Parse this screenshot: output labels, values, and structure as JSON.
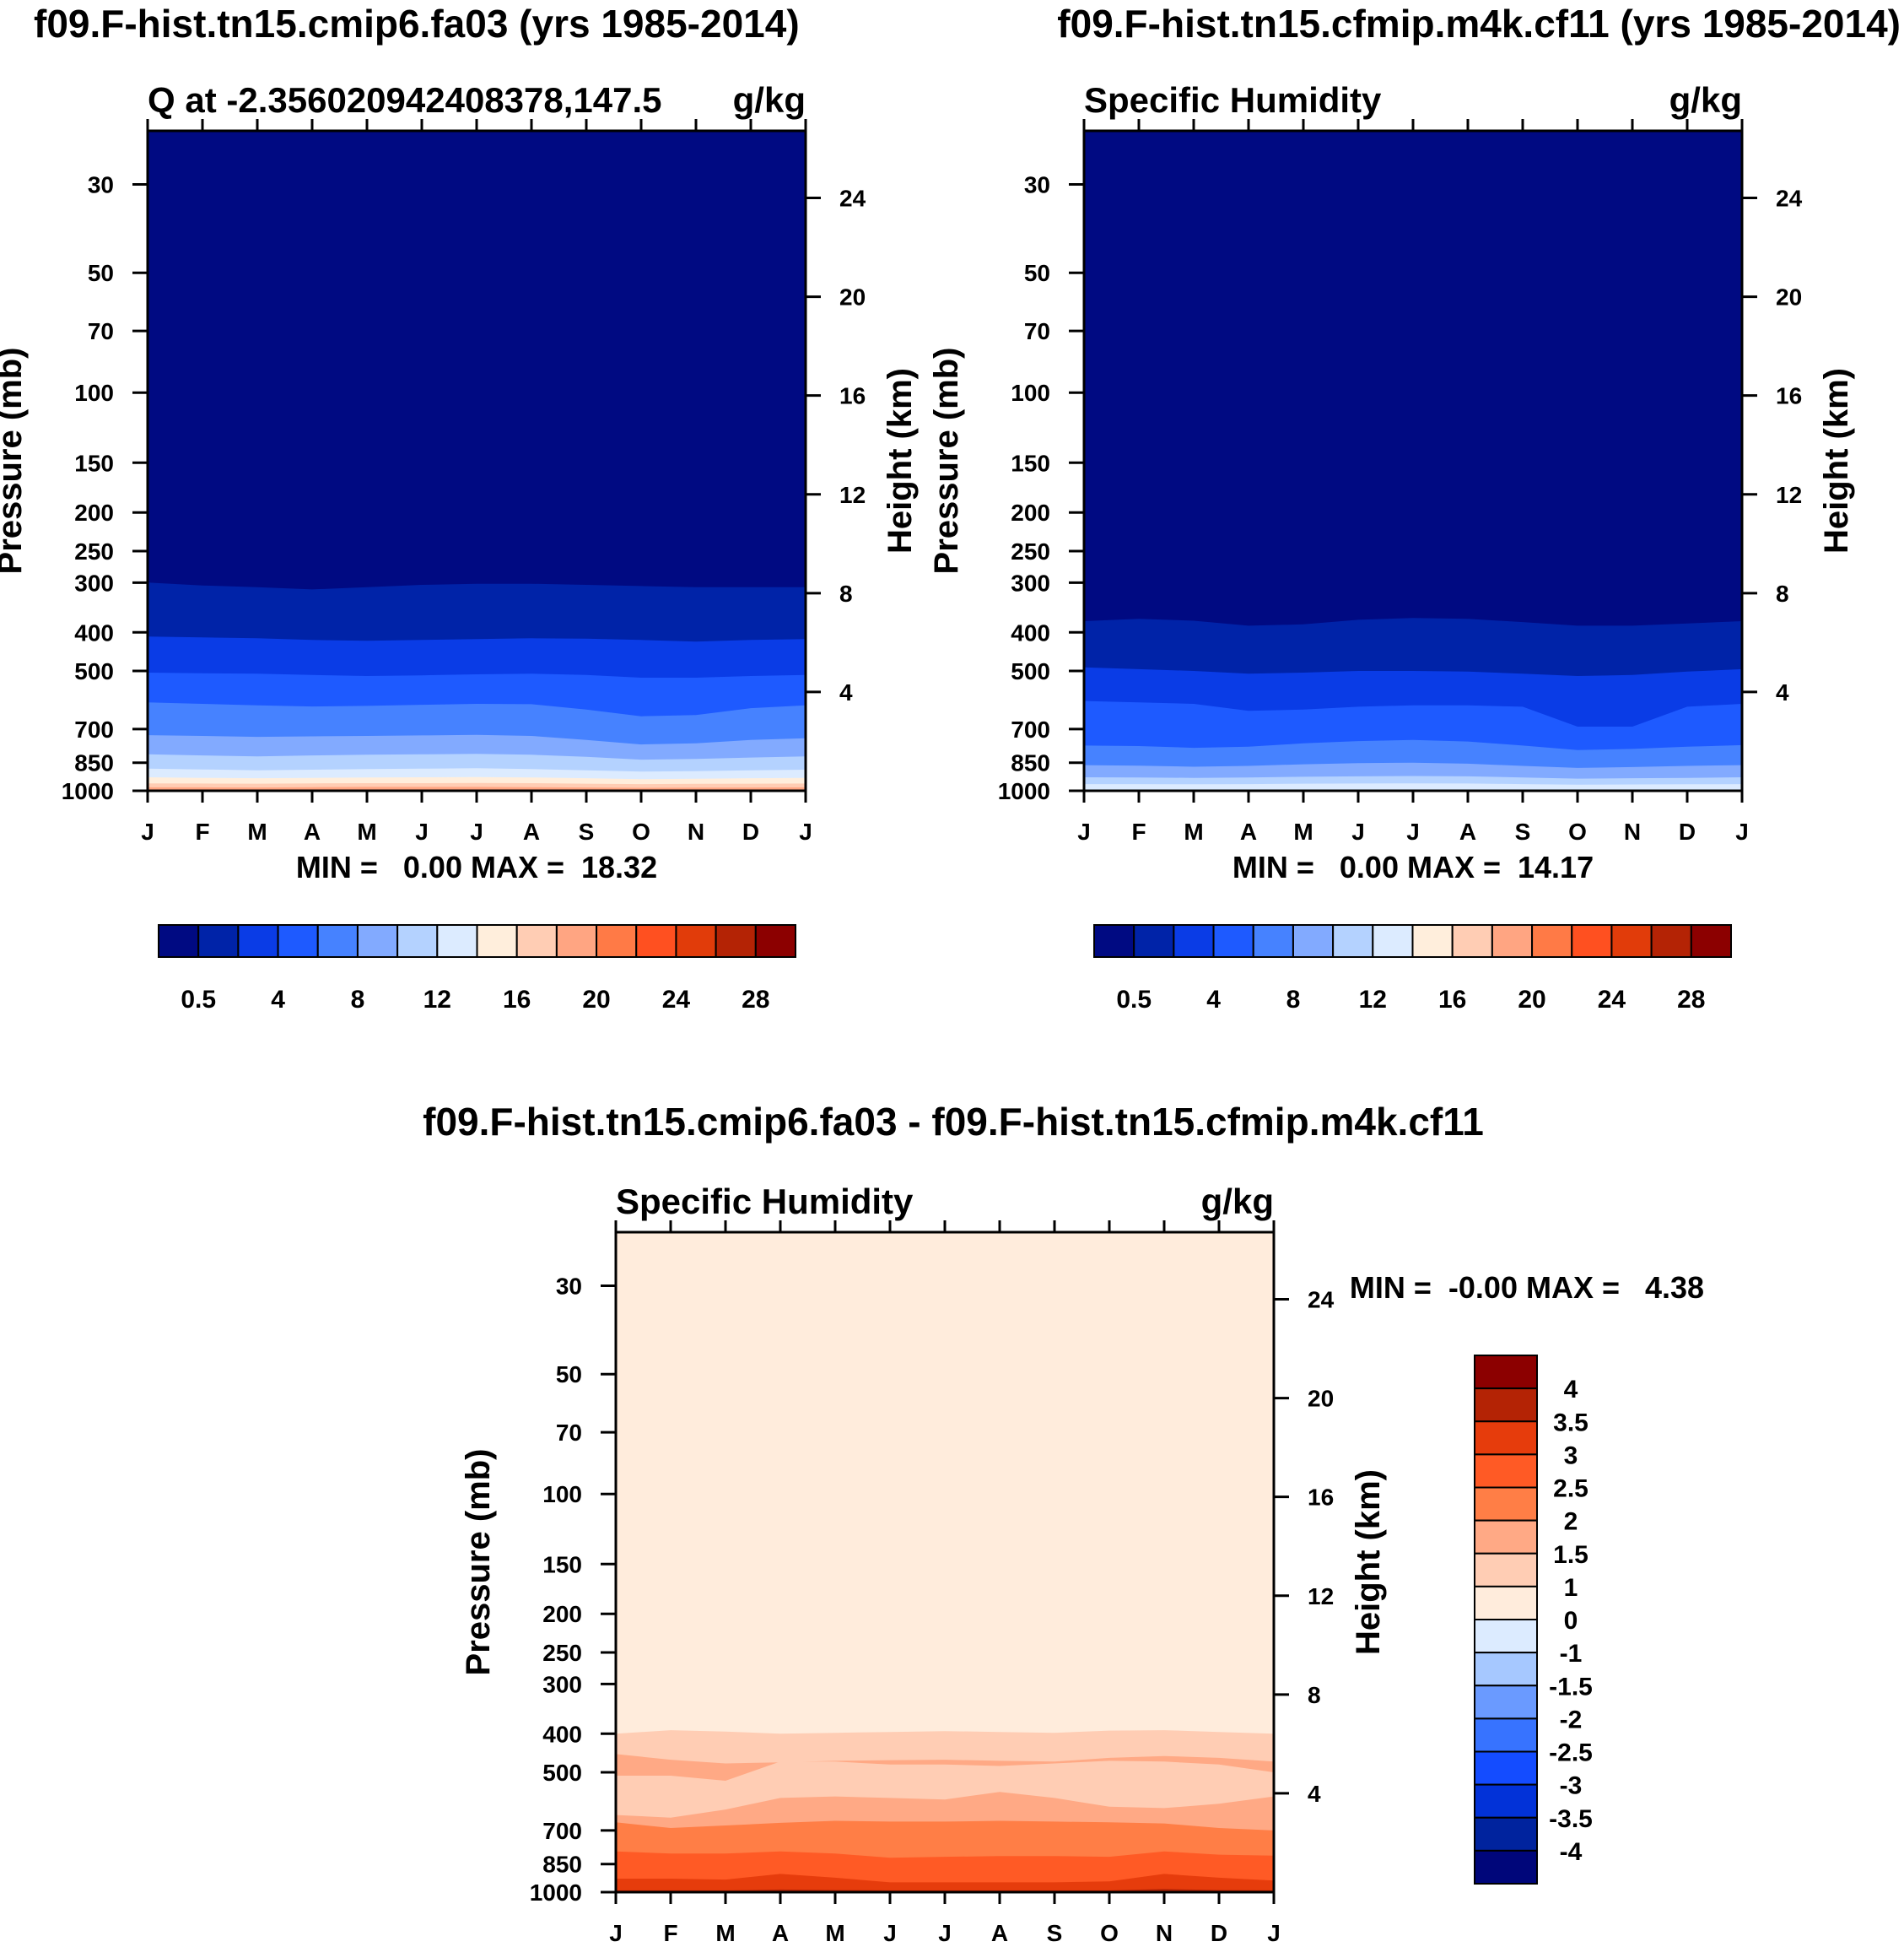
{
  "page_title_left": "f09.F-hist.tn15.cmip6.fa03 (yrs 1985-2014)",
  "page_title_right": "f09.F-hist.tn15.cfmip.m4k.cf11 (yrs 1985-2014)",
  "diff_title": "f09.F-hist.tn15.cmip6.fa03 - f09.F-hist.tn15.cfmip.m4k.cf11",
  "colors": {
    "abs_levels": [
      "#000a82",
      "#0023a8",
      "#0a3ce6",
      "#1e5aff",
      "#4682ff",
      "#82aaff",
      "#b4d2ff",
      "#dcebff",
      "#ffeedc",
      "#ffcdb4",
      "#ffa582",
      "#ff7a46",
      "#ff5020",
      "#e13c0a",
      "#b42305",
      "#8c0000"
    ],
    "diff_levels": [
      "#00067a",
      "#00239e",
      "#0232d8",
      "#144cff",
      "#3773ff",
      "#6a9aff",
      "#a6c8ff",
      "#dcebff",
      "#ffecdc",
      "#ffcdb4",
      "#ffa985",
      "#ff7e46",
      "#ff5a25",
      "#e63c0c",
      "#b42305",
      "#8c0000"
    ]
  },
  "chart_data": [
    {
      "type": "contour",
      "panel": "left",
      "title": "Q at -2.356020942408378,147.5",
      "units": "g/kg",
      "xlabel": "",
      "ylabel": "Pressure (mb)",
      "y2label": "Height (km)",
      "x_ticks": [
        "J",
        "F",
        "M",
        "A",
        "M",
        "J",
        "J",
        "A",
        "S",
        "O",
        "N",
        "D",
        "J"
      ],
      "y_ticks": [
        30,
        50,
        70,
        100,
        150,
        200,
        250,
        300,
        400,
        500,
        700,
        850,
        1000
      ],
      "y2_ticks": [
        4,
        8,
        12,
        16,
        20,
        24
      ],
      "ylim": [
        22,
        1000
      ],
      "stats": "MIN =   0.00 MAX =  18.32",
      "min": 0.0,
      "max": 18.32,
      "contour_pressures_mb": [
        [
          300,
          305,
          308,
          312,
          308,
          304,
          302,
          302,
          304,
          306,
          308,
          308,
          308
        ],
        [
          410,
          412,
          414,
          418,
          420,
          418,
          416,
          414,
          415,
          418,
          422,
          418,
          416
        ],
        [
          505,
          507,
          508,
          512,
          515,
          513,
          510,
          508,
          512,
          520,
          520,
          515,
          512
        ],
        [
          600,
          605,
          610,
          614,
          612,
          608,
          605,
          606,
          625,
          650,
          645,
          620,
          610
        ],
        [
          725,
          728,
          732,
          730,
          728,
          726,
          724,
          728,
          745,
          765,
          760,
          745,
          738
        ],
        [
          810,
          815,
          820,
          815,
          812,
          810,
          808,
          812,
          822,
          835,
          832,
          825,
          820
        ],
        [
          880,
          884,
          888,
          885,
          882,
          880,
          878,
          882,
          888,
          895,
          893,
          888,
          885
        ],
        [
          925,
          928,
          930,
          928,
          926,
          925,
          924,
          926,
          930,
          935,
          933,
          930,
          928
        ],
        [
          958,
          959,
          960,
          958,
          957,
          957,
          956,
          957,
          960,
          962,
          961,
          960,
          959
        ],
        [
          980,
          980,
          981,
          979,
          978,
          978,
          978,
          979,
          981,
          983,
          982,
          981,
          980
        ]
      ],
      "colorbar_labels": [
        "0.5",
        "4",
        "8",
        "12",
        "16",
        "20",
        "24",
        "28"
      ]
    },
    {
      "type": "contour",
      "panel": "right",
      "title": "Specific Humidity",
      "units": "g/kg",
      "xlabel": "",
      "ylabel": "Pressure (mb)",
      "y2label": "Height (km)",
      "x_ticks": [
        "J",
        "F",
        "M",
        "A",
        "M",
        "J",
        "J",
        "A",
        "S",
        "O",
        "N",
        "D",
        "J"
      ],
      "y_ticks": [
        30,
        50,
        70,
        100,
        150,
        200,
        250,
        300,
        400,
        500,
        700,
        850,
        1000
      ],
      "y2_ticks": [
        4,
        8,
        12,
        16,
        20,
        24
      ],
      "ylim": [
        22,
        1000
      ],
      "stats": "MIN =   0.00 MAX =  14.17",
      "min": 0.0,
      "max": 14.17,
      "contour_pressures_mb": [
        [
          375,
          370,
          374,
          385,
          382,
          372,
          368,
          370,
          377,
          385,
          385,
          380,
          375
        ],
        [
          490,
          495,
          500,
          508,
          505,
          500,
          500,
          502,
          508,
          515,
          512,
          502,
          495
        ],
        [
          595,
          600,
          605,
          630,
          625,
          615,
          610,
          610,
          615,
          690,
          690,
          615,
          605
        ],
        [
          770,
          772,
          780,
          775,
          760,
          750,
          745,
          752,
          770,
          790,
          785,
          775,
          768
        ],
        [
          862,
          865,
          870,
          866,
          858,
          852,
          850,
          855,
          866,
          876,
          872,
          866,
          862
        ],
        [
          925,
          926,
          928,
          926,
          922,
          920,
          918,
          920,
          926,
          932,
          930,
          928,
          925
        ],
        [
          962,
          962,
          963,
          962,
          960,
          959,
          958,
          959,
          962,
          965,
          964,
          963,
          962
        ]
      ],
      "colorbar_labels": [
        "0.5",
        "4",
        "8",
        "12",
        "16",
        "20",
        "24",
        "28"
      ]
    },
    {
      "type": "contour",
      "panel": "difference",
      "title": "Specific Humidity",
      "units": "g/kg",
      "xlabel": "",
      "ylabel": "Pressure (mb)",
      "y2label": "Height (km)",
      "x_ticks": [
        "J",
        "F",
        "M",
        "A",
        "M",
        "J",
        "J",
        "A",
        "S",
        "O",
        "N",
        "D",
        "J"
      ],
      "y_ticks": [
        30,
        50,
        70,
        100,
        150,
        200,
        250,
        300,
        400,
        500,
        700,
        850,
        1000
      ],
      "y2_ticks": [
        4,
        8,
        12,
        16,
        20,
        24
      ],
      "ylim": [
        22,
        1000
      ],
      "stats": "MIN =  -0.00 MAX =   4.38",
      "min": -0.0,
      "max": 4.38,
      "contour_pressures_mb": [
        [
          400,
          392,
          395,
          400,
          398,
          396,
          394,
          396,
          398,
          393,
          392,
          396,
          400
        ],
        [
          450,
          465,
          475,
          472,
          468,
          466,
          465,
          468,
          470,
          460,
          455,
          460,
          470
        ],
        [
          510,
          510,
          525,
          470,
          470,
          478,
          478,
          482,
          475,
          468,
          470,
          478,
          500
        ],
        [
          640,
          650,
          620,
          580,
          575,
          580,
          585,
          560,
          580,
          610,
          615,
          600,
          575
        ],
        [
          668,
          690,
          680,
          670,
          662,
          665,
          665,
          662,
          665,
          668,
          672,
          690,
          700
        ],
        [
          790,
          800,
          800,
          790,
          800,
          820,
          815,
          812,
          812,
          815,
          790,
          805,
          810
        ],
        [
          925,
          925,
          930,
          900,
          920,
          945,
          945,
          945,
          945,
          940,
          900,
          920,
          935
        ],
        [
          990,
          990,
          990,
          985,
          988,
          990,
          990,
          990,
          990,
          990,
          982,
          988,
          990
        ]
      ],
      "colorbar_labels": [
        "4",
        "3.5",
        "3",
        "2.5",
        "2",
        "1.5",
        "1",
        "0",
        "-1",
        "-1.5",
        "-2",
        "-2.5",
        "-3",
        "-3.5",
        "-4"
      ]
    }
  ]
}
